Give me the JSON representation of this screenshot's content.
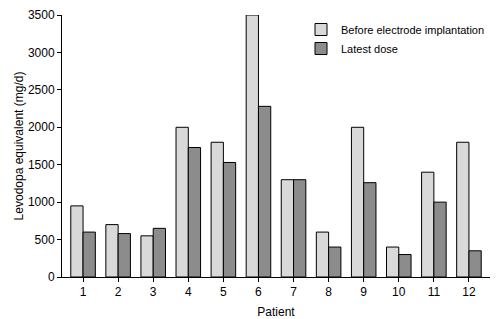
{
  "chart_data": {
    "type": "bar",
    "x_label": "Patient",
    "y_label": "Levodopa equivalent (mg/d)",
    "categories": [
      "1",
      "2",
      "3",
      "4",
      "5",
      "6",
      "7",
      "8",
      "9",
      "10",
      "11",
      "12"
    ],
    "series": [
      {
        "name": "Before electrode implantation",
        "color": "#d9d9d9",
        "values": [
          950,
          700,
          550,
          2000,
          1800,
          3500,
          1300,
          600,
          2000,
          400,
          1400,
          1800
        ]
      },
      {
        "name": "Latest dose",
        "color": "#8c8c8c",
        "values": [
          600,
          580,
          650,
          1730,
          1530,
          2280,
          1300,
          400,
          1260,
          300,
          1000,
          350
        ]
      }
    ],
    "ylim": [
      0,
      3500
    ],
    "yticks": [
      0,
      500,
      1000,
      1500,
      2000,
      2500,
      3000,
      3500
    ],
    "grid": false,
    "legend": "top right"
  }
}
